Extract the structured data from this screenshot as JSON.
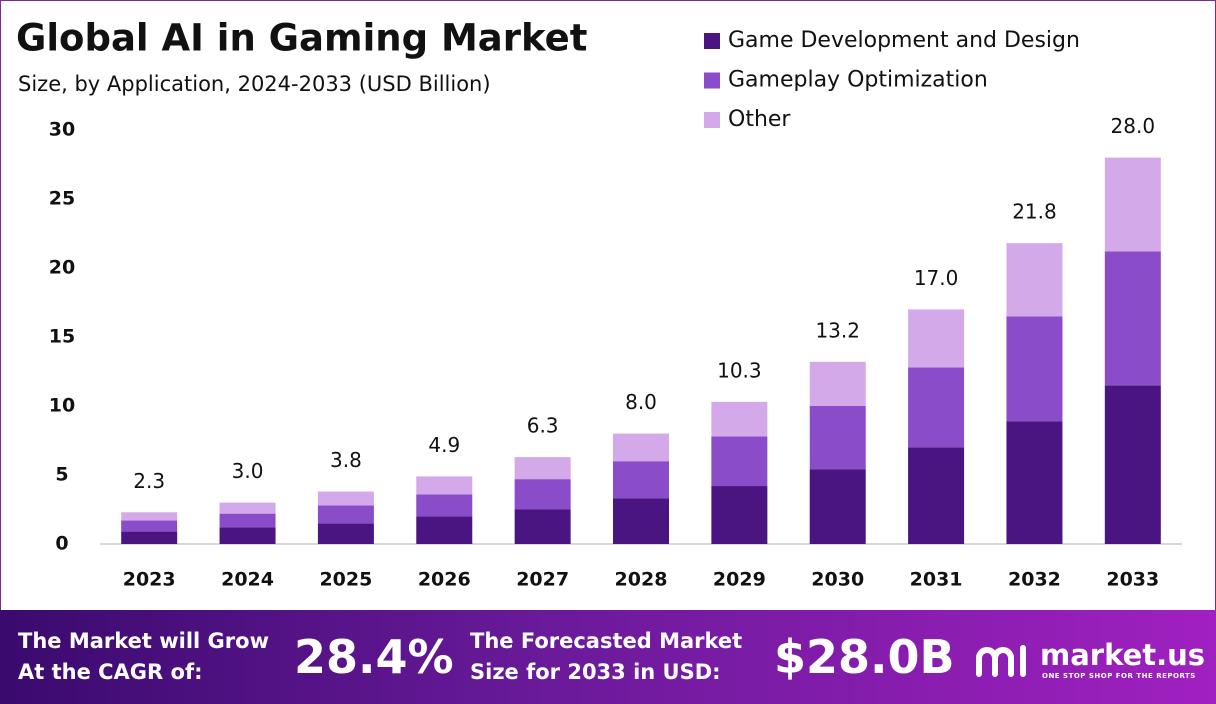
{
  "chart_data": {
    "type": "stacked-bar",
    "title": "Global AI in Gaming Market",
    "subtitle": "Size, by Application, 2024-2033 (USD Billion)",
    "categories": [
      "2023",
      "2024",
      "2025",
      "2026",
      "2027",
      "2028",
      "2029",
      "2030",
      "2031",
      "2032",
      "2033"
    ],
    "series": [
      {
        "name": "Game Development and Design",
        "color": "#4a1580",
        "values": [
          0.9,
          1.2,
          1.5,
          2.0,
          2.5,
          3.3,
          4.2,
          5.4,
          7.0,
          8.9,
          11.5
        ]
      },
      {
        "name": "Gameplay Optimization",
        "color": "#8a4cc8",
        "values": [
          0.8,
          1.0,
          1.3,
          1.6,
          2.2,
          2.7,
          3.6,
          4.6,
          5.8,
          7.6,
          9.7
        ]
      },
      {
        "name": "Other",
        "color": "#d4a9e9",
        "values": [
          0.6,
          0.8,
          1.0,
          1.3,
          1.6,
          2.0,
          2.5,
          3.2,
          4.2,
          5.3,
          6.8
        ]
      }
    ],
    "totals": [
      2.3,
      3.0,
      3.8,
      4.9,
      6.3,
      8.0,
      10.3,
      13.2,
      17.0,
      21.8,
      28.0
    ],
    "total_labels": [
      "2.3",
      "3.0",
      "3.8",
      "4.9",
      "6.3",
      "8.0",
      "10.3",
      "13.2",
      "17.0",
      "21.8",
      "28.0"
    ],
    "ylim": [
      0,
      30
    ],
    "yticks": [
      0,
      5,
      10,
      15,
      20,
      25,
      30
    ],
    "grid": false,
    "legend": "top-right"
  },
  "footer": {
    "cagr_text": [
      "The Market will Grow",
      "At the CAGR of:"
    ],
    "cagr_value": "28.4%",
    "forecast_text": [
      "The Forecasted Market",
      "Size for 2033 in USD:"
    ],
    "forecast_value": "$28.0B",
    "brand": "market.us",
    "tagline": "ONE STOP SHOP FOR THE REPORTS"
  }
}
